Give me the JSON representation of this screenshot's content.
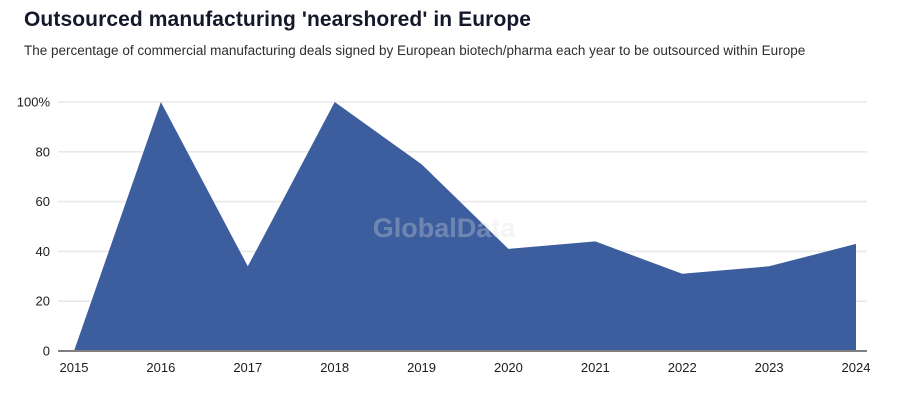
{
  "header": {
    "title": "Outsourced manufacturing 'nearshored' in Europe",
    "subtitle": "The percentage of commercial manufacturing deals signed by European biotech/pharma each year to be outsourced within Europe"
  },
  "watermark": "GlobalData",
  "chart_data": {
    "type": "area",
    "title": "Outsourced manufacturing 'nearshored' in Europe",
    "subtitle": "The percentage of commercial manufacturing deals signed by European biotech/pharma each year to be outsourced within Europe",
    "categories": [
      "2015",
      "2016",
      "2017",
      "2018",
      "2019",
      "2020",
      "2021",
      "2022",
      "2023",
      "2024"
    ],
    "values": [
      0,
      100,
      34,
      100,
      75,
      41,
      44,
      31,
      34,
      43
    ],
    "xlabel": "",
    "ylabel": "",
    "ylim": [
      0,
      100
    ],
    "ytick_values": [
      0,
      20,
      40,
      60,
      80,
      100
    ],
    "ytick_labels": [
      "0",
      "20",
      "40",
      "60",
      "80",
      "100%"
    ],
    "grid": true,
    "legend": false,
    "colors": {
      "area_fill": "#3d5e9e",
      "gridline": "#e9e9e9",
      "axis_line": "#7f7f7f",
      "tick_text": "#1d1d1d",
      "watermark": "#dcdcdc"
    }
  }
}
